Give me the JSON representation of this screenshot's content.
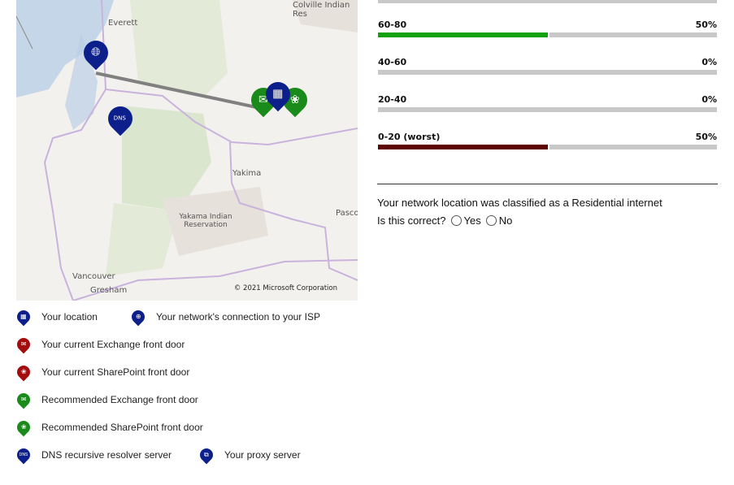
{
  "map": {
    "labels": {
      "everett": "Everett",
      "colville": "Colville Indian Res",
      "yakima": "Yakima",
      "yakama": "Yakama Indian Reservation",
      "pasco": "Pasco",
      "vancouver": "Vancouver",
      "gresham": "Gresham"
    },
    "copyright": "© 2021 Microsoft Corporation",
    "pins": [
      {
        "icon": "globe-icon",
        "color": "#0d1f8a"
      },
      {
        "icon": "dns-icon",
        "color": "#0d1f8a"
      },
      {
        "icon": "building-icon",
        "color": "#0d1f8a"
      },
      {
        "icon": "exchange-icon",
        "color": "#1a8a1a"
      },
      {
        "icon": "sharepoint-icon",
        "color": "#1a8a1a"
      }
    ]
  },
  "legend": {
    "your_location": "Your location",
    "isp": "Your network's connection to your ISP",
    "current_exchange": "Your current Exchange front door",
    "current_sharepoint": "Your current SharePoint front door",
    "rec_exchange": "Recommended Exchange front door",
    "rec_sharepoint": "Recommended SharePoint front door",
    "dns": "DNS recursive resolver server",
    "proxy": "Your proxy server",
    "dns_glyph": "DNS"
  },
  "rows": [
    {
      "label": "60-80",
      "value": "50%",
      "fraction": 0.5,
      "color": "#13a10e"
    },
    {
      "label": "40-60",
      "value": "0%",
      "fraction": 0,
      "color": "#13a10e"
    },
    {
      "label": "20-40",
      "value": "0%",
      "fraction": 0,
      "color": "#13a10e"
    },
    {
      "label": "0-20 (worst)",
      "value": "50%",
      "fraction": 0.5,
      "color": "#5c0000"
    }
  ],
  "classification": {
    "text": "Your network location was classified as a Residential internet",
    "question": "Is this correct?",
    "yes": "Yes",
    "no": "No"
  }
}
